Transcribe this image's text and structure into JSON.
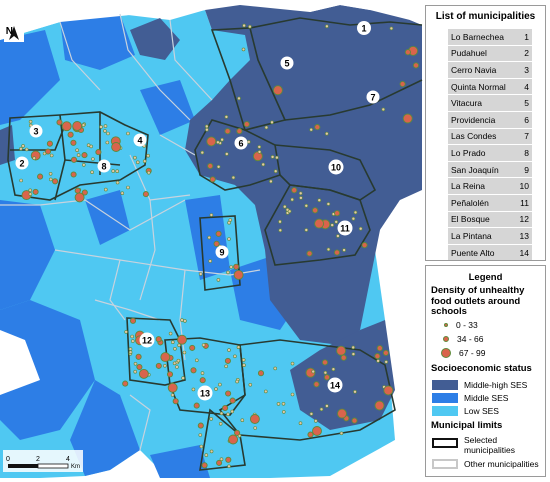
{
  "map": {
    "north_label": "N",
    "scale": {
      "ticks": [
        "0",
        "2",
        "4"
      ],
      "unit": "Km"
    },
    "labels": [
      {
        "num": "1"
      },
      {
        "num": "2"
      },
      {
        "num": "3"
      },
      {
        "num": "4"
      },
      {
        "num": "5"
      },
      {
        "num": "6"
      },
      {
        "num": "7"
      },
      {
        "num": "8"
      },
      {
        "num": "9"
      },
      {
        "num": "10"
      },
      {
        "num": "11"
      },
      {
        "num": "12"
      },
      {
        "num": "13"
      },
      {
        "num": "14"
      }
    ],
    "colors": {
      "middle_high_ses": "#425d94",
      "middle_ses": "#2d7ee6",
      "low_ses": "#4fc8f2",
      "outside": "#ffffff",
      "outlet_fill": "#d9644c",
      "outlet_ring": "#5f8a3a"
    }
  },
  "municipalities": {
    "title": "List of municipalities",
    "items": [
      {
        "name": "Lo Barnechea",
        "num": "1"
      },
      {
        "name": "Pudahuel",
        "num": "2"
      },
      {
        "name": "Cerro Navia",
        "num": "3"
      },
      {
        "name": "Quinta Normal",
        "num": "4"
      },
      {
        "name": "Vitacura",
        "num": "5"
      },
      {
        "name": "Providencia",
        "num": "6"
      },
      {
        "name": "Las Condes",
        "num": "7"
      },
      {
        "name": "Lo Prado",
        "num": "8"
      },
      {
        "name": "San Joaquín",
        "num": "9"
      },
      {
        "name": "La Reina",
        "num": "10"
      },
      {
        "name": "Peñalolén",
        "num": "11"
      },
      {
        "name": "El Bosque",
        "num": "12"
      },
      {
        "name": "La Pintana",
        "num": "13"
      },
      {
        "name": "Puente Alto",
        "num": "14"
      }
    ]
  },
  "legend": {
    "title": "Legend",
    "density_heading_1": "Density of unhealthy",
    "density_heading_2": "food outlets around",
    "density_heading_3": "schools",
    "density_classes": [
      "0 - 33",
      "34 - 66",
      "67 - 99"
    ],
    "ses_heading": "Socioeconomic status",
    "ses_classes": [
      "Middle-high SES",
      "Middle SES",
      "Low SES"
    ],
    "limits_heading": "Municipal limits",
    "selected_1": "Selected",
    "selected_2": "municipalities",
    "other": "Other municipalities"
  }
}
